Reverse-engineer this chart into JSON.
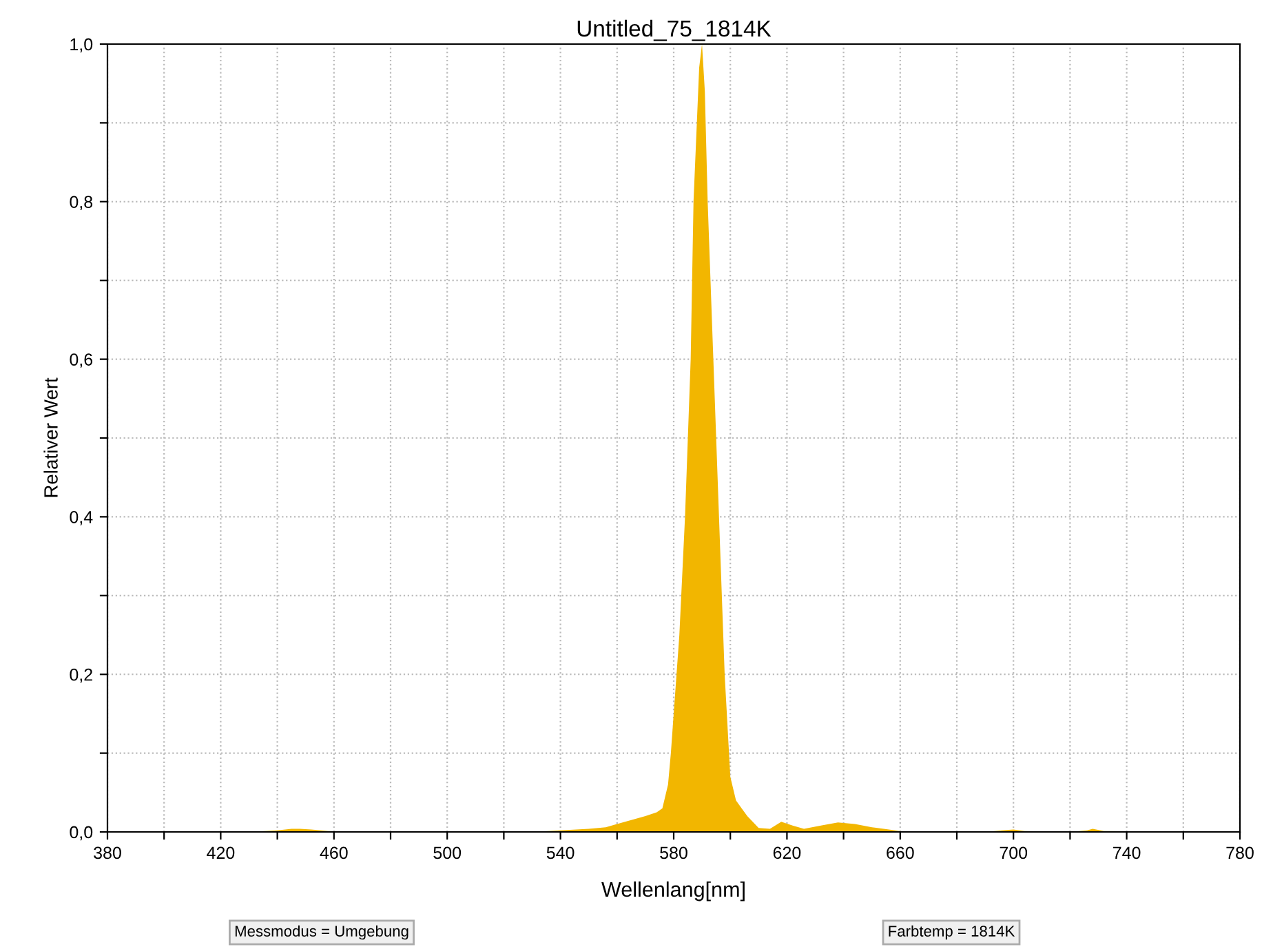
{
  "chart_data": {
    "type": "area",
    "title": "Untitled_75_1814K",
    "xlabel": "Wellenlang[nm]",
    "ylabel": "Relativer Wert",
    "annotations": [
      "Messmodus = Umgebung",
      "Farbtemp = 1814K"
    ],
    "x": [
      380,
      430,
      440,
      445,
      448,
      452,
      458,
      470,
      530,
      540,
      550,
      556,
      560,
      565,
      570,
      574,
      576,
      578,
      579,
      582,
      584,
      586,
      587,
      589,
      590,
      591,
      592,
      594,
      596,
      598,
      600,
      602,
      604,
      606,
      610,
      614,
      618,
      622,
      626,
      632,
      638,
      644,
      650,
      656,
      662,
      690,
      696,
      700,
      704,
      720,
      726,
      728,
      732,
      780
    ],
    "series": [
      {
        "color": "#f2b600",
        "values": [
          0,
          0,
          0.002,
          0.004,
          0.004,
          0.003,
          0.001,
          0,
          0,
          0.002,
          0.004,
          0.006,
          0.01,
          0.015,
          0.02,
          0.025,
          0.03,
          0.06,
          0.1,
          0.25,
          0.4,
          0.6,
          0.8,
          0.97,
          1.0,
          0.94,
          0.8,
          0.6,
          0.4,
          0.2,
          0.07,
          0.04,
          0.03,
          0.02,
          0.005,
          0.004,
          0.013,
          0.008,
          0.004,
          0.008,
          0.012,
          0.01,
          0.006,
          0.003,
          0,
          0,
          0.002,
          0.003,
          0.001,
          0,
          0.002,
          0.004,
          0.001,
          0
        ]
      }
    ],
    "xlim": [
      380,
      780
    ],
    "ylim": [
      0,
      1
    ],
    "xticks": [
      380,
      {
        "value": 400,
        "label": null
      },
      420,
      {
        "value": 440,
        "label": null
      },
      460,
      {
        "value": 480,
        "label": null
      },
      500,
      {
        "value": 520,
        "label": null
      },
      540,
      {
        "value": 560,
        "label": null
      },
      580,
      {
        "value": 600,
        "label": null
      },
      620,
      {
        "value": 640,
        "label": null
      },
      660,
      {
        "value": 680,
        "label": null
      },
      700,
      {
        "value": 720,
        "label": null
      },
      740,
      {
        "value": 760,
        "label": null
      },
      780
    ],
    "yticks": [
      {
        "value": 0,
        "label": "0,0"
      },
      {
        "value": 0.1,
        "label": null
      },
      {
        "value": 0.2,
        "label": "0,2"
      },
      {
        "value": 0.3,
        "label": null
      },
      {
        "value": 0.4,
        "label": "0,4"
      },
      {
        "value": 0.5,
        "label": null
      },
      {
        "value": 0.6,
        "label": "0,6"
      },
      {
        "value": 0.7,
        "label": null
      },
      {
        "value": 0.8,
        "label": "0,8"
      },
      {
        "value": 0.9,
        "label": null
      },
      {
        "value": 1,
        "label": "1,0"
      }
    ],
    "grid": true,
    "legend": false
  }
}
